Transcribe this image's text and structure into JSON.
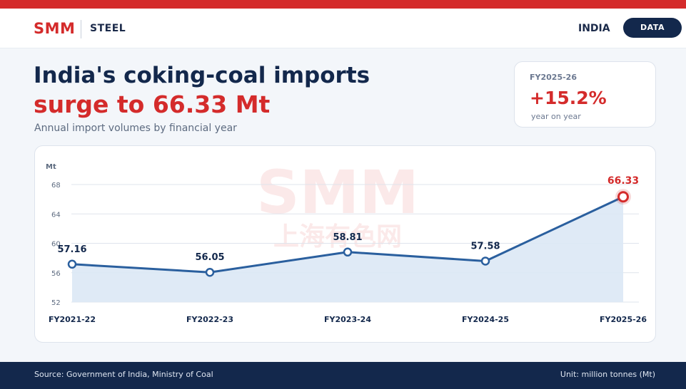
{
  "header": {
    "brand": "SMM",
    "section": "STEEL",
    "country": "INDIA",
    "data_button": "DATA"
  },
  "headline": {
    "line1": "India's coking-coal imports",
    "line2": "surge to 66.33 Mt",
    "subtitle": "Annual import volumes by financial year"
  },
  "kpi": {
    "label": "FY2025-26",
    "value": "+15.2%",
    "sub": "year on year"
  },
  "watermark": {
    "text": "SMM",
    "text_cn": "上海有色网"
  },
  "footer": {
    "source": "Source: Government of India, Ministry of Coal",
    "unit": "Unit: million tonnes (Mt)"
  },
  "colors": {
    "accent_red": "#d42b2b",
    "navy": "#13284c",
    "line_blue": "#2a5f9e",
    "area_fill": "#dce8f5"
  },
  "chart_data": {
    "type": "line",
    "ylabel": "Mt",
    "categories": [
      "FY2021-22",
      "FY2022-23",
      "FY2023-24",
      "FY2024-25",
      "FY2025-26"
    ],
    "values": [
      57.16,
      56.05,
      58.81,
      57.58,
      66.33
    ],
    "data_labels": [
      "57.16",
      "56.05",
      "58.81",
      "57.58",
      "66.33"
    ],
    "yticks": [
      52,
      56,
      60,
      64,
      68
    ],
    "ylim": [
      52,
      68
    ],
    "grid": true,
    "area_fill": true,
    "highlight_last": true
  }
}
